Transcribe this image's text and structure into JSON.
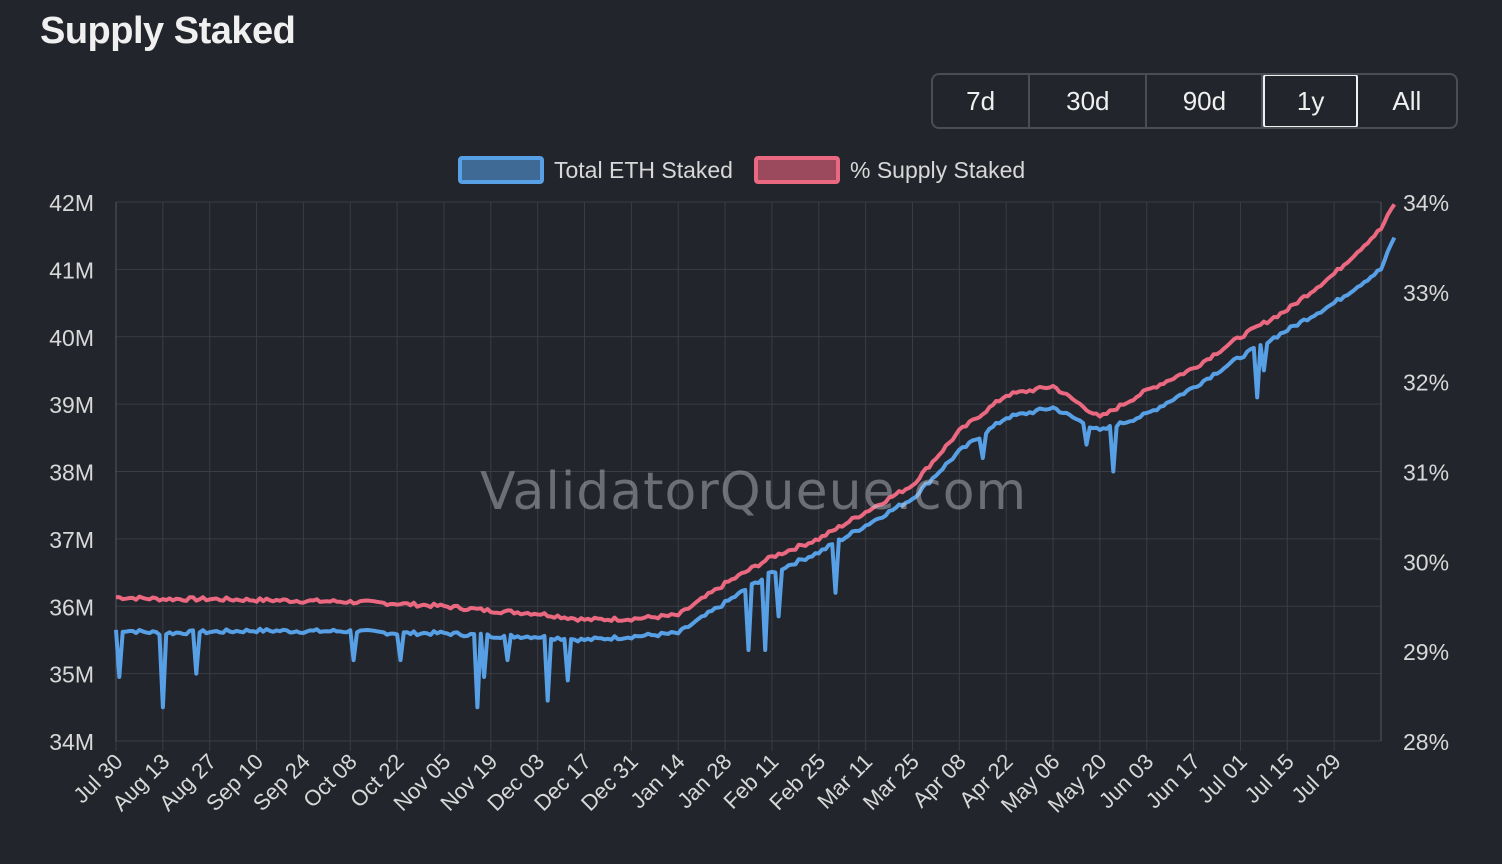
{
  "header": {
    "title": "Supply Staked"
  },
  "range_selector": {
    "options": [
      "7d",
      "30d",
      "90d",
      "1y",
      "All"
    ],
    "active": "1y"
  },
  "watermark": "ValidatorQueue.com",
  "colors": {
    "eth": "#58a0e6",
    "pct": "#ea6880",
    "grid": "#3a3d44",
    "background": "#22252b"
  },
  "chart_data": {
    "type": "line",
    "legend": {
      "position": "top-center"
    },
    "grid": true,
    "x_ticks": [
      "Jul 30",
      "Aug 13",
      "Aug 27",
      "Sep 10",
      "Sep 24",
      "Oct 08",
      "Oct 22",
      "Nov 05",
      "Nov 19",
      "Dec 03",
      "Dec 17",
      "Dec 31",
      "Jan 14",
      "Jan 28",
      "Feb 11",
      "Feb 25",
      "Mar 11",
      "Mar 25",
      "Apr 08",
      "Apr 22",
      "May 06",
      "May 20",
      "Jun 03",
      "Jun 17",
      "Jul 01",
      "Jul 15",
      "Jul 29"
    ],
    "y_left": {
      "ticks": [
        "34M",
        "35M",
        "36M",
        "37M",
        "38M",
        "39M",
        "40M",
        "41M",
        "42M"
      ],
      "min": 34,
      "max": 42
    },
    "y_right": {
      "ticks": [
        "28%",
        "29%",
        "30%",
        "31%",
        "32%",
        "33%",
        "34%"
      ],
      "min": 28,
      "max": 34
    },
    "series": [
      {
        "name": "Total ETH Staked",
        "axis": "left",
        "points": [
          [
            0,
            35.65
          ],
          [
            14,
            35.6
          ],
          [
            28,
            35.62
          ],
          [
            42,
            35.64
          ],
          [
            56,
            35.63
          ],
          [
            70,
            35.63
          ],
          [
            84,
            35.6
          ],
          [
            98,
            35.6
          ],
          [
            112,
            35.56
          ],
          [
            126,
            35.55
          ],
          [
            140,
            35.5
          ],
          [
            154,
            35.55
          ],
          [
            168,
            35.6
          ],
          [
            182,
            36.05
          ],
          [
            196,
            36.5
          ],
          [
            210,
            36.8
          ],
          [
            224,
            37.2
          ],
          [
            238,
            37.6
          ],
          [
            252,
            38.3
          ],
          [
            266,
            38.8
          ],
          [
            280,
            38.95
          ],
          [
            294,
            38.6
          ],
          [
            308,
            38.85
          ],
          [
            322,
            39.25
          ],
          [
            336,
            39.7
          ],
          [
            350,
            40.1
          ],
          [
            364,
            40.5
          ],
          [
            378,
            41.0
          ],
          [
            382,
            41.48
          ]
        ],
        "dips": [
          [
            1,
            34.95
          ],
          [
            14,
            34.5
          ],
          [
            24,
            35.0
          ],
          [
            71,
            35.2
          ],
          [
            85,
            35.2
          ],
          [
            108,
            34.5
          ],
          [
            110,
            34.95
          ],
          [
            117,
            35.2
          ],
          [
            129,
            34.6
          ],
          [
            135,
            34.9
          ],
          [
            189,
            35.35
          ],
          [
            194,
            35.35
          ],
          [
            198,
            35.85
          ],
          [
            215,
            36.2
          ],
          [
            259,
            38.2
          ],
          [
            290,
            38.4
          ],
          [
            298,
            38.0
          ],
          [
            341,
            39.1
          ],
          [
            343,
            39.5
          ]
        ]
      },
      {
        "name": "% Supply Staked",
        "axis": "right",
        "points": [
          [
            0,
            29.6
          ],
          [
            14,
            29.58
          ],
          [
            28,
            29.58
          ],
          [
            42,
            29.57
          ],
          [
            56,
            29.56
          ],
          [
            70,
            29.55
          ],
          [
            84,
            29.53
          ],
          [
            98,
            29.5
          ],
          [
            112,
            29.45
          ],
          [
            126,
            29.42
          ],
          [
            140,
            29.35
          ],
          [
            154,
            29.36
          ],
          [
            168,
            29.4
          ],
          [
            182,
            29.75
          ],
          [
            196,
            30.05
          ],
          [
            210,
            30.25
          ],
          [
            224,
            30.55
          ],
          [
            238,
            30.85
          ],
          [
            252,
            31.45
          ],
          [
            266,
            31.85
          ],
          [
            280,
            31.95
          ],
          [
            294,
            31.6
          ],
          [
            308,
            31.9
          ],
          [
            322,
            32.15
          ],
          [
            336,
            32.5
          ],
          [
            350,
            32.8
          ],
          [
            364,
            33.2
          ],
          [
            378,
            33.7
          ],
          [
            382,
            33.98
          ]
        ]
      }
    ]
  }
}
